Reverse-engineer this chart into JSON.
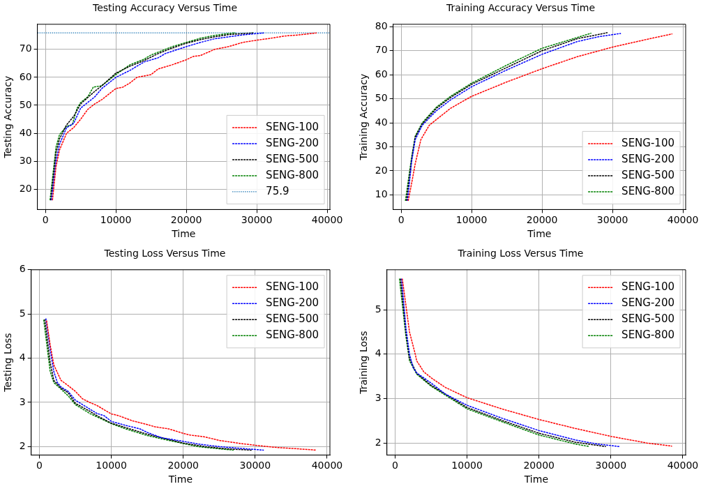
{
  "chart_data": [
    {
      "type": "line",
      "title": "Testing Accuracy Versus Time",
      "xlabel": "Time",
      "ylabel": "Testing Accuracy",
      "xlim": [
        -1140,
        40390
      ],
      "xticks": [
        0,
        10000,
        20000,
        30000,
        40000
      ],
      "ylim": [
        12.7,
        79
      ],
      "yticks": [
        20,
        30,
        40,
        50,
        60,
        70
      ],
      "grid": true,
      "legend": "bottom right",
      "marker": "none",
      "line_style": "dashed",
      "series": [
        {
          "name": "SENG-100",
          "color": "#ff0000",
          "x": [
            1000,
            1500,
            2000,
            3000,
            4000,
            5000,
            6000,
            7000,
            8000,
            9000,
            10000,
            11000,
            12000,
            13000,
            14000,
            15000,
            16000,
            18000,
            20000,
            21000,
            22000,
            24000,
            26000,
            28000,
            30000,
            32000,
            34000,
            36000,
            38500
          ],
          "values": [
            16,
            28,
            34,
            40,
            42,
            45,
            48.5,
            50.5,
            52,
            54,
            56,
            56.5,
            58,
            60,
            60.5,
            61,
            63,
            64.5,
            66.3,
            67.5,
            67.8,
            70,
            71,
            72.5,
            73.3,
            74,
            74.8,
            75.2,
            75.9
          ]
        },
        {
          "name": "SENG-200",
          "color": "#0000ff",
          "x": [
            850,
            1500,
            2000,
            3000,
            4000,
            5000,
            6000,
            7000,
            8000,
            10000,
            12000,
            14000,
            16000,
            17000,
            20000,
            22000,
            24000,
            26000,
            28000,
            31000
          ],
          "values": [
            16,
            30,
            36,
            42,
            43.5,
            49,
            51,
            53,
            56,
            60,
            62.5,
            65.5,
            67,
            68.5,
            71,
            72.5,
            73.8,
            74.5,
            75.2,
            75.9
          ]
        },
        {
          "name": "SENG-500",
          "color": "#000000",
          "x": [
            750,
            1500,
            2000,
            3000,
            4000,
            5000,
            7000,
            8000,
            10000,
            12000,
            14000,
            16000,
            18000,
            20000,
            22000,
            24000,
            26000,
            29500
          ],
          "values": [
            16,
            33,
            38,
            43,
            46,
            50.5,
            55,
            57,
            61.5,
            64,
            66,
            68.5,
            70.5,
            72.2,
            73.5,
            74.5,
            75.3,
            75.9
          ]
        },
        {
          "name": "SENG-800",
          "color": "#008000",
          "x": [
            650,
            1500,
            2000,
            3000,
            3800,
            4500,
            5000,
            6000,
            6800,
            8000,
            10000,
            12000,
            14000,
            15000,
            16000,
            18000,
            20000,
            22000,
            24000,
            26000,
            27000
          ],
          "values": [
            16,
            35,
            39.5,
            42.5,
            43,
            49,
            51,
            53,
            56.5,
            57,
            61,
            64.5,
            66.5,
            68,
            69,
            71,
            72.5,
            74,
            75,
            75.7,
            75.9
          ]
        }
      ],
      "ref_lines": [
        {
          "axis": "y",
          "value": 75.9,
          "label": "75.9",
          "color": "#1f77b4",
          "line_style": "dotted"
        }
      ]
    },
    {
      "type": "line",
      "title": "Training Accuracy Versus Time",
      "xlabel": "Time",
      "ylabel": "Training Accuracy",
      "xlim": [
        -1140,
        40390
      ],
      "xticks": [
        0,
        10000,
        20000,
        30000,
        40000
      ],
      "ylim": [
        3.9,
        81
      ],
      "yticks": [
        10,
        20,
        30,
        40,
        50,
        60,
        70,
        80
      ],
      "grid": true,
      "legend": "bottom right",
      "marker": "none",
      "line_style": "dashed",
      "series": [
        {
          "name": "SENG-100",
          "color": "#ff0000",
          "x": [
            1000,
            1500,
            2000,
            2800,
            4000,
            7000,
            10000,
            15000,
            20000,
            25000,
            30000,
            35000,
            38500
          ],
          "values": [
            7.5,
            15,
            23,
            33,
            39,
            46,
            51,
            57,
            62.5,
            67.5,
            71.5,
            74.8,
            77
          ]
        },
        {
          "name": "SENG-200",
          "color": "#0000ff",
          "x": [
            900,
            1500,
            2000,
            3000,
            5000,
            7000,
            10000,
            15000,
            20000,
            25000,
            28000,
            31200
          ],
          "values": [
            7.5,
            24,
            33,
            39,
            45,
            49.5,
            55,
            62,
            68.5,
            73.8,
            75.8,
            77.2
          ]
        },
        {
          "name": "SENG-500",
          "color": "#000000",
          "x": [
            750,
            1500,
            2000,
            3000,
            5000,
            7000,
            10000,
            15000,
            20000,
            25000,
            29300
          ],
          "values": [
            7.5,
            25,
            34,
            39.5,
            46,
            50.5,
            56,
            63,
            70,
            75,
            77.5
          ]
        },
        {
          "name": "SENG-800",
          "color": "#008000",
          "x": [
            600,
            1500,
            2000,
            3000,
            5000,
            7000,
            10000,
            15000,
            20000,
            25000,
            27000
          ],
          "values": [
            7.5,
            26,
            34.5,
            40,
            46.5,
            51,
            56.5,
            64,
            71,
            75.5,
            77.3
          ]
        }
      ]
    },
    {
      "type": "line",
      "title": "Testing Loss Versus Time",
      "xlabel": "Time",
      "ylabel": "Testing Loss",
      "xlim": [
        -1140,
        40390
      ],
      "xticks": [
        0,
        10000,
        20000,
        30000,
        40000
      ],
      "ylim": [
        1.81,
        6
      ],
      "yticks": [
        2,
        3,
        4,
        5,
        6
      ],
      "grid": true,
      "legend": "top right",
      "marker": "none",
      "line_style": "dashed",
      "series": [
        {
          "name": "SENG-100",
          "color": "#ff0000",
          "x": [
            1000,
            1500,
            2000,
            3000,
            4000,
            5000,
            6000,
            7000,
            8000,
            10000,
            11000,
            13000,
            15000,
            16000,
            18000,
            20000,
            21000,
            23000,
            25000,
            28000,
            30000,
            33000,
            36000,
            38500
          ],
          "values": [
            4.85,
            4.3,
            3.85,
            3.5,
            3.38,
            3.25,
            3.08,
            3,
            2.93,
            2.74,
            2.7,
            2.58,
            2.5,
            2.45,
            2.4,
            2.3,
            2.26,
            2.22,
            2.14,
            2.07,
            2.03,
            1.98,
            1.95,
            1.92
          ]
        },
        {
          "name": "SENG-200",
          "color": "#0000ff",
          "x": [
            900,
            1500,
            2000,
            2500,
            3000,
            4000,
            5000,
            6000,
            8000,
            9000,
            10000,
            12000,
            14000,
            15000,
            17000,
            20000,
            22000,
            25000,
            28000,
            31200
          ],
          "values": [
            4.9,
            4.2,
            3.7,
            3.45,
            3.35,
            3.25,
            3.05,
            2.95,
            2.75,
            2.7,
            2.57,
            2.48,
            2.4,
            2.32,
            2.2,
            2.12,
            2.06,
            2,
            1.96,
            1.92
          ]
        },
        {
          "name": "SENG-500",
          "color": "#000000",
          "x": [
            750,
            1500,
            2000,
            3000,
            4000,
            5000,
            7000,
            8000,
            10000,
            12000,
            15000,
            18000,
            20000,
            23000,
            26000,
            29500
          ],
          "values": [
            4.88,
            3.9,
            3.5,
            3.32,
            3.22,
            2.98,
            2.8,
            2.7,
            2.53,
            2.43,
            2.28,
            2.16,
            2.08,
            2,
            1.95,
            1.92
          ]
        },
        {
          "name": "SENG-800",
          "color": "#008000",
          "x": [
            600,
            1500,
            2000,
            3000,
            4000,
            5000,
            7000,
            10000,
            12000,
            15000,
            18000,
            20000,
            22000,
            25000,
            27000
          ],
          "values": [
            4.87,
            3.7,
            3.45,
            3.3,
            3.15,
            2.95,
            2.75,
            2.52,
            2.4,
            2.25,
            2.14,
            2.07,
            2,
            1.95,
            1.92
          ]
        }
      ]
    },
    {
      "type": "line",
      "title": "Training Loss Versus Time",
      "xlabel": "Time",
      "ylabel": "Training Loss",
      "xlim": [
        -1140,
        40390
      ],
      "xticks": [
        0,
        10000,
        20000,
        30000,
        40000
      ],
      "ylim": [
        1.73,
        5.9
      ],
      "yticks": [
        2,
        3,
        4,
        5
      ],
      "grid": true,
      "legend": "top right",
      "marker": "none",
      "line_style": "dashed",
      "series": [
        {
          "name": "SENG-100",
          "color": "#ff0000",
          "x": [
            1000,
            1500,
            2000,
            2800,
            3000,
            4000,
            5000,
            7000,
            10000,
            15000,
            20000,
            25000,
            30000,
            35000,
            38500
          ],
          "values": [
            5.7,
            5.1,
            4.5,
            4,
            3.85,
            3.6,
            3.47,
            3.25,
            3.02,
            2.76,
            2.53,
            2.33,
            2.15,
            2,
            1.93
          ]
        },
        {
          "name": "SENG-200",
          "color": "#0000ff",
          "x": [
            900,
            1500,
            2000,
            2500,
            3000,
            5000,
            7000,
            10000,
            15000,
            20000,
            25000,
            28000,
            31200
          ],
          "values": [
            5.7,
            4.6,
            4,
            3.7,
            3.58,
            3.35,
            3.1,
            2.85,
            2.55,
            2.28,
            2.07,
            1.98,
            1.92
          ]
        },
        {
          "name": "SENG-500",
          "color": "#000000",
          "x": [
            750,
            1500,
            2000,
            3000,
            5000,
            10000,
            15000,
            20000,
            25000,
            29300
          ],
          "values": [
            5.7,
            4.5,
            3.9,
            3.57,
            3.3,
            2.8,
            2.5,
            2.22,
            2.02,
            1.92
          ]
        },
        {
          "name": "SENG-800",
          "color": "#008000",
          "x": [
            600,
            1500,
            2000,
            3000,
            5000,
            10000,
            15000,
            20000,
            25000,
            27000
          ],
          "values": [
            5.7,
            4.4,
            3.85,
            3.55,
            3.28,
            2.77,
            2.47,
            2.18,
            1.98,
            1.92
          ]
        }
      ]
    }
  ]
}
